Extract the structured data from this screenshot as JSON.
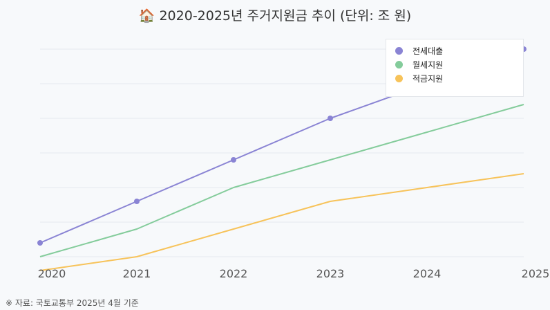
{
  "title": "🏠 2020-2025년 주거지원금 추이 (단위: 조 원)",
  "source_note": "※ 자료: 국토교통부 2025년 4월 기준",
  "colors": {
    "series": [
      "#8a84d4",
      "#84cc9b",
      "#f7c35a"
    ],
    "grid": "#e6e9ef",
    "tick_text": "#555555"
  },
  "chart_data": {
    "type": "line",
    "title": "🏠 2020-2025년 주거지원금 추이 (단위: 조 원)",
    "xlabel": "",
    "ylabel": "",
    "x": [
      "2020",
      "2021",
      "2022",
      "2023",
      "2024",
      "2025"
    ],
    "ylim": [
      0,
      6
    ],
    "grid": true,
    "legend_position": "top-right",
    "series": [
      {
        "name": "전세대출",
        "values": [
          0.4,
          1.6,
          2.8,
          4.0,
          5.0,
          6.0
        ],
        "markers": true
      },
      {
        "name": "월세지원",
        "values": [
          0.0,
          0.8,
          2.0,
          2.8,
          3.6,
          4.4
        ],
        "markers": false
      },
      {
        "name": "적금지원",
        "values": [
          -0.4,
          0.0,
          0.8,
          1.6,
          2.0,
          2.4
        ],
        "markers": false
      }
    ]
  }
}
